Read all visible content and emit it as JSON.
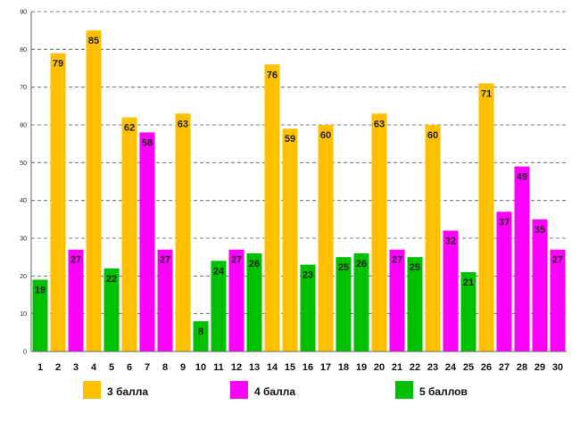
{
  "chart_data": {
    "type": "bar",
    "title": "",
    "xlabel": "",
    "ylabel": "",
    "ylim": [
      0,
      90
    ],
    "ytick_step": 10,
    "grid": true,
    "legend_position": "bottom",
    "categories": [
      "1",
      "2",
      "3",
      "4",
      "5",
      "6",
      "7",
      "8",
      "9",
      "10",
      "11",
      "12",
      "13",
      "14",
      "15",
      "16",
      "17",
      "18",
      "19",
      "20",
      "21",
      "22",
      "23",
      "24",
      "25",
      "26",
      "27",
      "28",
      "29",
      "30"
    ],
    "values": [
      19,
      79,
      27,
      85,
      22,
      62,
      58,
      27,
      63,
      8,
      24,
      27,
      26,
      76,
      59,
      23,
      60,
      25,
      26,
      63,
      27,
      25,
      60,
      32,
      21,
      71,
      37,
      49,
      35,
      27
    ],
    "groups": [
      "5",
      "3",
      "4",
      "3",
      "5",
      "3",
      "4",
      "4",
      "3",
      "5",
      "5",
      "4",
      "5",
      "3",
      "3",
      "5",
      "3",
      "5",
      "5",
      "3",
      "4",
      "5",
      "3",
      "4",
      "5",
      "3",
      "4",
      "4",
      "4",
      "4"
    ],
    "series": [
      {
        "key": "3",
        "name": "3 балла",
        "color": "#FFC000"
      },
      {
        "key": "4",
        "name": "4 балла",
        "color": "#FF00FF"
      },
      {
        "key": "5",
        "name": "5 баллов",
        "color": "#00C000"
      }
    ]
  }
}
